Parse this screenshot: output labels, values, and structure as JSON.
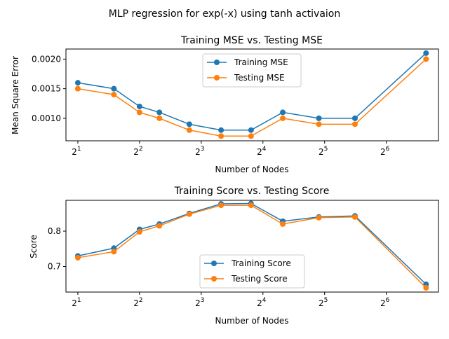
{
  "figure": {
    "suptitle": "MLP regression for exp(-x) using tanh activaion"
  },
  "colors": {
    "series_a": "#1f77b4",
    "series_b": "#ff7f0e",
    "axes": "#000000",
    "legend_edge": "#cccccc"
  },
  "chart_data": [
    {
      "type": "line",
      "title": "Training MSE vs. Testing MSE",
      "xlabel": "Number of Nodes",
      "ylabel": "Mean Square Error",
      "xscale": "log2",
      "xlim": [
        1.75,
        115
      ],
      "ylim": [
        0.00062,
        0.00217
      ],
      "x": [
        2,
        3,
        4,
        5,
        7,
        10,
        14,
        20,
        30,
        45,
        100
      ],
      "x_ticks": [
        {
          "value": 2,
          "base": "2",
          "exp": "1"
        },
        {
          "value": 4,
          "base": "2",
          "exp": "2"
        },
        {
          "value": 8,
          "base": "2",
          "exp": "3"
        },
        {
          "value": 16,
          "base": "2",
          "exp": "4"
        },
        {
          "value": 32,
          "base": "2",
          "exp": "5"
        },
        {
          "value": 64,
          "base": "2",
          "exp": "6"
        }
      ],
      "y_ticks": [
        {
          "value": 0.001,
          "label": "0.0010"
        },
        {
          "value": 0.0015,
          "label": "0.0015"
        },
        {
          "value": 0.002,
          "label": "0.0020"
        }
      ],
      "series": [
        {
          "name": "Training MSE",
          "values": [
            0.0016,
            0.0015,
            0.0012,
            0.0011,
            0.0009,
            0.0008,
            0.0008,
            0.0011,
            0.001,
            0.001,
            0.0021
          ]
        },
        {
          "name": "Testing MSE",
          "values": [
            0.0015,
            0.0014,
            0.0011,
            0.001,
            0.0008,
            0.0007,
            0.0007,
            0.001,
            0.0009,
            0.0009,
            0.002
          ]
        }
      ],
      "legend": "upper center",
      "grid": false
    },
    {
      "type": "line",
      "title": "Training Score vs. Testing Score",
      "xlabel": "Number of Nodes",
      "ylabel": "Score",
      "xscale": "log2",
      "xlim": [
        1.75,
        115
      ],
      "ylim": [
        0.628,
        0.887
      ],
      "x": [
        2,
        3,
        4,
        5,
        7,
        10,
        14,
        20,
        30,
        45,
        100
      ],
      "x_ticks": [
        {
          "value": 2,
          "base": "2",
          "exp": "1"
        },
        {
          "value": 4,
          "base": "2",
          "exp": "2"
        },
        {
          "value": 8,
          "base": "2",
          "exp": "3"
        },
        {
          "value": 16,
          "base": "2",
          "exp": "4"
        },
        {
          "value": 32,
          "base": "2",
          "exp": "5"
        },
        {
          "value": 64,
          "base": "2",
          "exp": "6"
        }
      ],
      "y_ticks": [
        {
          "value": 0.7,
          "label": "0.7"
        },
        {
          "value": 0.8,
          "label": "0.8"
        }
      ],
      "series": [
        {
          "name": "Training Score",
          "values": [
            0.73,
            0.752,
            0.805,
            0.82,
            0.85,
            0.877,
            0.878,
            0.828,
            0.84,
            0.843,
            0.65
          ]
        },
        {
          "name": "Testing Score",
          "values": [
            0.725,
            0.742,
            0.798,
            0.815,
            0.848,
            0.873,
            0.873,
            0.82,
            0.838,
            0.84,
            0.64
          ]
        }
      ],
      "legend": "lower center",
      "grid": false
    }
  ]
}
